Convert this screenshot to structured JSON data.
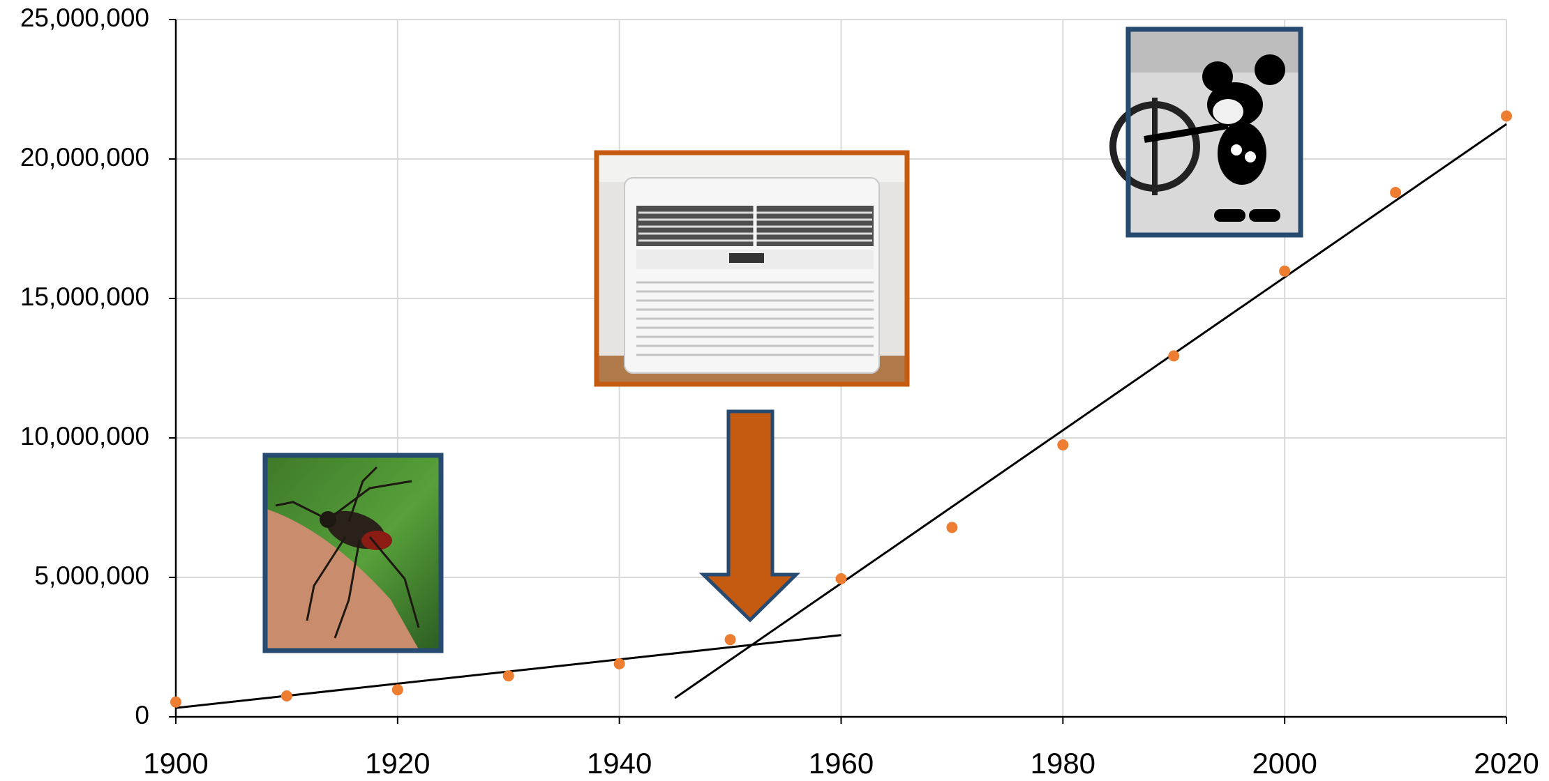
{
  "chart_data": {
    "type": "scatter",
    "x": [
      1900,
      1910,
      1920,
      1930,
      1940,
      1950,
      1960,
      1970,
      1980,
      1990,
      2000,
      2010,
      2020
    ],
    "values": [
      530000,
      750000,
      970000,
      1470000,
      1900000,
      2770000,
      4950000,
      6790000,
      9750000,
      12940000,
      15980000,
      18800000,
      21540000
    ],
    "color": "#ed7d31",
    "trendlines": [
      {
        "x": [
          1900,
          1960
        ],
        "values": [
          320000,
          2930000
        ],
        "color": "#000000"
      },
      {
        "x": [
          1945,
          2020
        ],
        "values": [
          670000,
          21250000
        ],
        "color": "#000000"
      }
    ],
    "xlim": [
      1900,
      2020
    ],
    "xticks": [
      1900,
      1920,
      1940,
      1960,
      1980,
      2000,
      2020
    ],
    "ylim": [
      0,
      25000000
    ],
    "yticks": [
      0,
      {
        "value": 5000000,
        "label": "5,000,000"
      },
      {
        "value": 10000000,
        "label": "10,000,000"
      },
      {
        "value": 15000000,
        "label": "15,000,000"
      },
      {
        "value": 20000000,
        "label": "20,000,000"
      },
      {
        "value": 25000000,
        "label": "25,000,000"
      }
    ],
    "grid": true
  }
}
